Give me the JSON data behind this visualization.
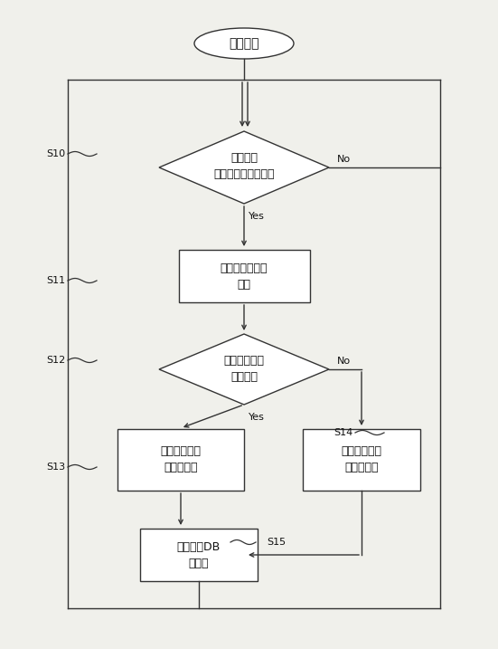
{
  "bg_color": "#f0f0eb",
  "box_color": "#ffffff",
  "box_edge": "#333333",
  "text_color": "#111111",
  "line_color": "#333333",
  "start_label": "スタート",
  "diamond1_line1": "ハザード",
  "diamond1_line2": "投稿を受信したか？",
  "box1_line1": "タイムスタンプ",
  "box1_line2": "発行",
  "diamond2_line1": "ユーザからの",
  "diamond2_line2": "投稿か？",
  "box2_line1": "種別を「ユー",
  "box2_line2": "ザ」に設定",
  "box3_line1": "種別を「管理",
  "box3_line2": "者」に設定",
  "box4_line1": "ハザードDB",
  "box4_line2": "に登録",
  "s10": "S10",
  "s11": "S11",
  "s12": "S12",
  "s13": "S13",
  "s14": "S14",
  "s15": "S15",
  "yes_label": "Yes",
  "no_label": "No",
  "figw": 5.51,
  "figh": 7.17,
  "dpi": 100
}
